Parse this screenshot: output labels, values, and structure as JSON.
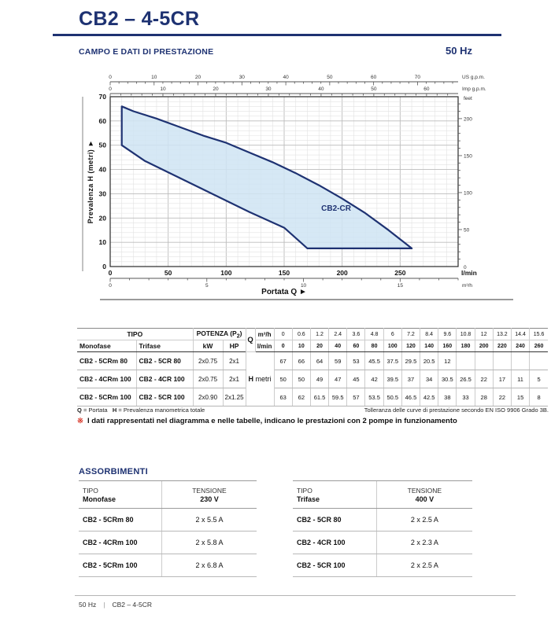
{
  "page": {
    "title": "CB2 – 4-5CR",
    "section_title": "CAMPO E DATI DI PRESTAZIONE",
    "frequency": "50 Hz",
    "footer": {
      "left": "50 Hz",
      "separator": "|",
      "right": "CB2 – 4-5CR"
    }
  },
  "chart_data": {
    "type": "area",
    "label": "CB2-CR",
    "label_pos": [
      182,
      23
    ],
    "fill": "#cfe4f3",
    "stroke": "#1e3272",
    "xlabel": "Portata Q",
    "x_arrow": "►",
    "x_axis_lmin": {
      "label": "l/min",
      "min": 0,
      "max": 300,
      "ticks": [
        0,
        50,
        100,
        150,
        200,
        250
      ]
    },
    "x_axis_m3h": {
      "label": "m³/h",
      "ticks": [
        0,
        5,
        10,
        15
      ]
    },
    "x_axis_usgpm": {
      "label": "US g.p.m.",
      "ticks": [
        0,
        10,
        20,
        30,
        40,
        50,
        60,
        70
      ]
    },
    "x_axis_impgpm": {
      "label": "Imp g.p.m.",
      "ticks": [
        0,
        10,
        20,
        30,
        40,
        50,
        60
      ]
    },
    "y_axis_m": {
      "label": "Prevalenza H (metri)",
      "min": 0,
      "max": 70,
      "ticks": [
        0,
        10,
        20,
        30,
        40,
        50,
        60,
        70
      ]
    },
    "y_axis_feet": {
      "label": "feet",
      "ticks": [
        0,
        50,
        100,
        150,
        200
      ]
    },
    "envelope_outline": [
      [
        10,
        66
      ],
      [
        20,
        64
      ],
      [
        40,
        61
      ],
      [
        60,
        57.5
      ],
      [
        80,
        54
      ],
      [
        100,
        51
      ],
      [
        120,
        47
      ],
      [
        140,
        43
      ],
      [
        160,
        38.5
      ],
      [
        180,
        33.5
      ],
      [
        200,
        28
      ],
      [
        220,
        22
      ],
      [
        240,
        15
      ],
      [
        260,
        7.5
      ],
      [
        170,
        7.5
      ],
      [
        150,
        16
      ],
      [
        120,
        22.5
      ],
      [
        90,
        29.5
      ],
      [
        60,
        36.5
      ],
      [
        30,
        43.5
      ],
      [
        10,
        50
      ]
    ],
    "grid": true
  },
  "main_table": {
    "headers": {
      "tipo": "TIPO",
      "potenza": {
        "text": "POTENZA (P",
        "sub": "2",
        "close": ")"
      },
      "monofase": "Monofase",
      "trifase": "Trifase",
      "kw": "kW",
      "hp": "HP",
      "q": "Q",
      "m3h": "m³/h",
      "lmin": "l/min",
      "h": "H",
      "metri": "metri"
    },
    "m3h_values": [
      "0",
      "0.6",
      "1.2",
      "2.4",
      "3.6",
      "4.8",
      "6",
      "7.2",
      "8.4",
      "9.6",
      "10.8",
      "12",
      "13.2",
      "14.4",
      "15.6"
    ],
    "lmin_values": [
      "0",
      "10",
      "20",
      "40",
      "60",
      "80",
      "100",
      "120",
      "140",
      "160",
      "180",
      "200",
      "220",
      "240",
      "260"
    ],
    "rows": [
      {
        "monofase": "CB2 - 5CRm 80",
        "trifase": "CB2 - 5CR 80",
        "kw": "2x0.75",
        "hp": "2x1",
        "h_values": [
          "67",
          "66",
          "64",
          "59",
          "53",
          "45.5",
          "37.5",
          "29.5",
          "20.5",
          "12",
          "",
          "",
          "",
          "",
          ""
        ]
      },
      {
        "monofase": "CB2 - 4CRm 100",
        "trifase": "CB2 - 4CR 100",
        "kw": "2x0.75",
        "hp": "2x1",
        "h_values": [
          "50",
          "50",
          "49",
          "47",
          "45",
          "42",
          "39.5",
          "37",
          "34",
          "30.5",
          "26.5",
          "22",
          "17",
          "11",
          "5"
        ]
      },
      {
        "monofase": "CB2 - 5CRm 100",
        "trifase": "CB2 - 5CR 100",
        "kw": "2x0.90",
        "hp": "2x1.25",
        "h_values": [
          "63",
          "62",
          "61.5",
          "59.5",
          "57",
          "53.5",
          "50.5",
          "46.5",
          "42.5",
          "38",
          "33",
          "28",
          "22",
          "15",
          "8"
        ]
      }
    ],
    "footnote": {
      "q_label": "Q",
      "q_text": "= Portata",
      "h_label": "H",
      "h_text": "= Prevalenza manometrica totale",
      "right": "Tolleranza delle curve di prestazione secondo EN ISO 9906 Grado 3B."
    },
    "note": {
      "symbol": "※",
      "text": "I dati rappresentati nel diagramma e nelle tabelle, indicano le prestazioni con 2 pompe in funzionamento"
    }
  },
  "assorbimenti": {
    "heading": "ASSORBIMENTI",
    "tables": [
      {
        "tipo_label": "TIPO",
        "phase": "Monofase",
        "tensione_label": "TENSIONE",
        "voltage": "230 V",
        "rows": [
          [
            "CB2 - 5CRm 80",
            "2 x 5.5 A"
          ],
          [
            "CB2 - 4CRm 100",
            "2 x 5.8 A"
          ],
          [
            "CB2 - 5CRm 100",
            "2 x 6.8 A"
          ]
        ]
      },
      {
        "tipo_label": "TIPO",
        "phase": "Trifase",
        "tensione_label": "TENSIONE",
        "voltage": "400 V",
        "rows": [
          [
            "CB2 - 5CR 80",
            "2 x 2.5 A"
          ],
          [
            "CB2 - 4CR 100",
            "2 x 2.3 A"
          ],
          [
            "CB2 - 5CR 100",
            "2 x 2.5 A"
          ]
        ]
      }
    ]
  },
  "colors": {
    "navy": "#1e3272",
    "light_blue": "#cfe4f3",
    "red": "#d8392b"
  }
}
